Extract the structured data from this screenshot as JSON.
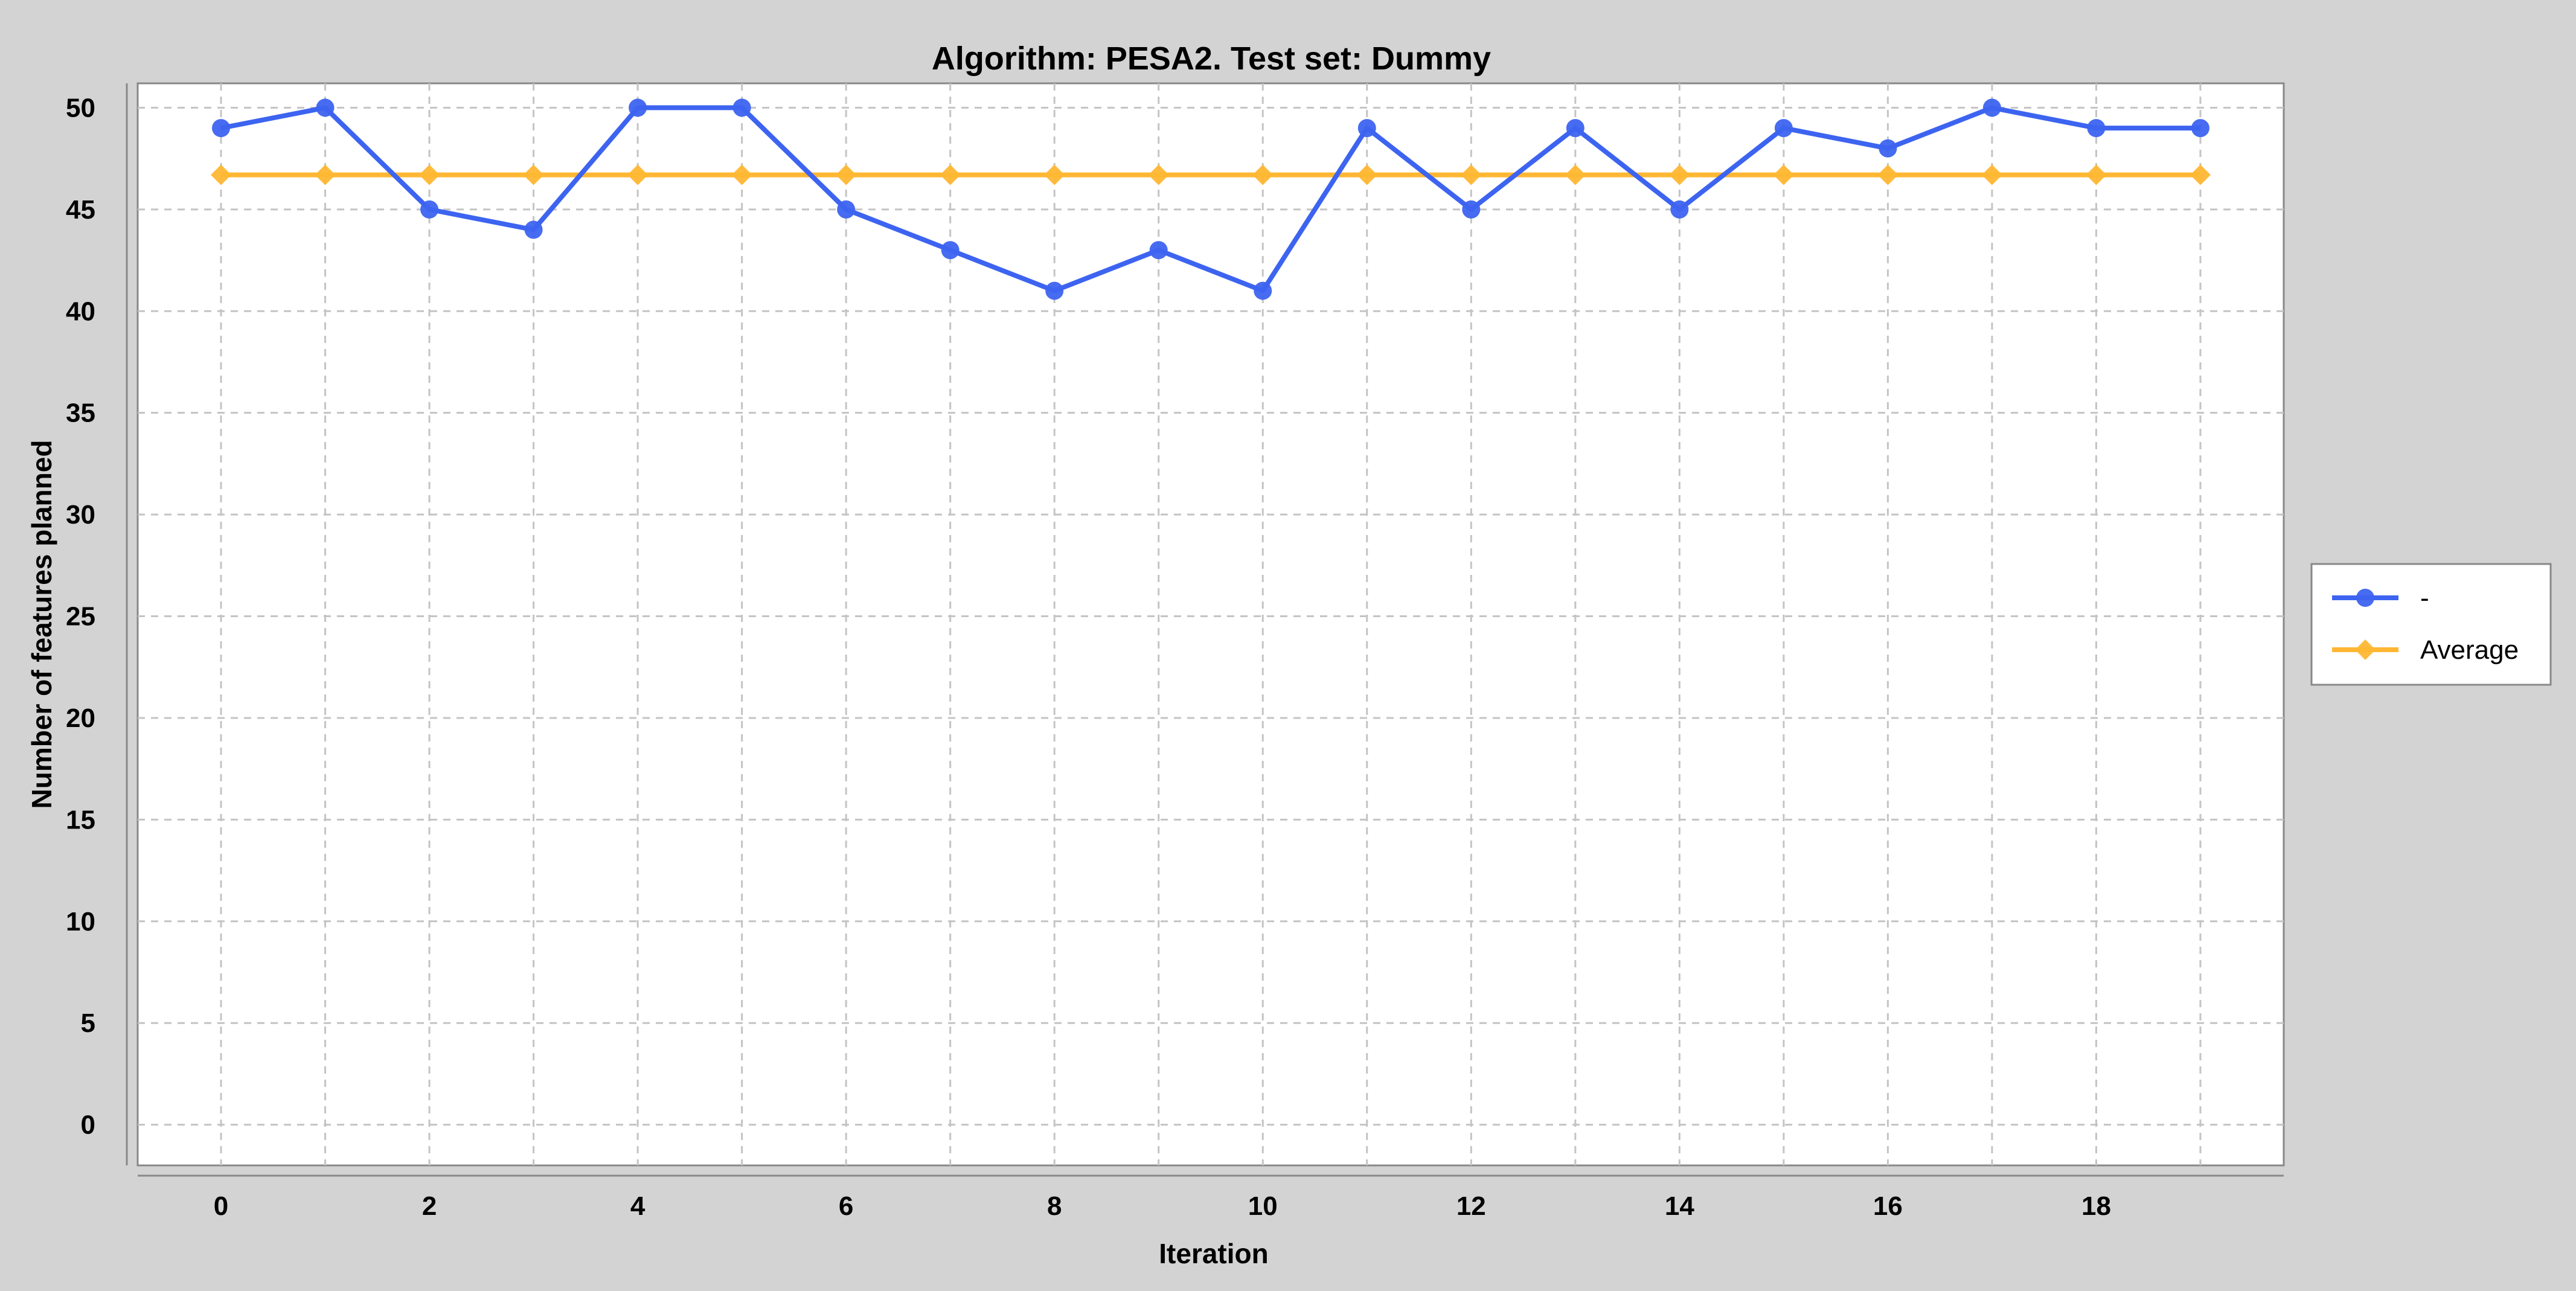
{
  "chart_data": {
    "type": "line",
    "title": "Algorithm: PESA2. Test set: Dummy",
    "xlabel": "Iteration",
    "ylabel": "Number of features planned",
    "x": [
      0,
      1,
      2,
      3,
      4,
      5,
      6,
      7,
      8,
      9,
      10,
      11,
      12,
      13,
      14,
      15,
      16,
      17,
      18,
      19
    ],
    "xlim": [
      -0.8,
      19.8
    ],
    "ylim": [
      -2,
      51.2
    ],
    "x_ticks": [
      "0",
      "2",
      "4",
      "6",
      "8",
      "10",
      "12",
      "14",
      "16",
      "18"
    ],
    "y_ticks": [
      "0",
      "5",
      "10",
      "15",
      "20",
      "25",
      "30",
      "35",
      "40",
      "45",
      "50"
    ],
    "grid": true,
    "legend_position": "right",
    "series": [
      {
        "name": "-",
        "color": "#3d64f0",
        "marker": "circle",
        "values": [
          49,
          50,
          45,
          44,
          50,
          50,
          45,
          43,
          41,
          43,
          41,
          49,
          45,
          49,
          45,
          49,
          48,
          50,
          49,
          49
        ]
      },
      {
        "name": "Average",
        "color": "#ffb733",
        "marker": "diamond",
        "values": [
          46.7,
          46.7,
          46.7,
          46.7,
          46.7,
          46.7,
          46.7,
          46.7,
          46.7,
          46.7,
          46.7,
          46.7,
          46.7,
          46.7,
          46.7,
          46.7,
          46.7,
          46.7,
          46.7,
          46.7
        ]
      }
    ]
  }
}
